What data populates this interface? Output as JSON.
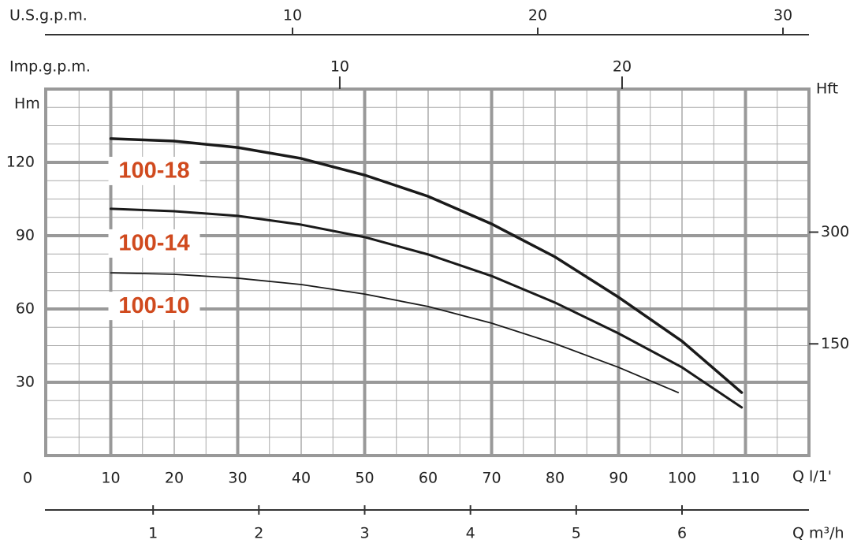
{
  "chart_data": {
    "type": "line",
    "x_label": "Q l/1'",
    "y_label": "Hm",
    "y2_label": "Hft",
    "xlim": [
      0,
      120
    ],
    "xticks": [
      0,
      10,
      20,
      30,
      40,
      50,
      60,
      70,
      80,
      90,
      100,
      110
    ],
    "ylim": [
      0,
      150
    ],
    "yticks": [
      30,
      60,
      90,
      120
    ],
    "y2lim": [
      0,
      492.1
    ],
    "y2ticks": [
      150,
      300
    ],
    "grid": true,
    "label_color": "#d04a1e",
    "top_axes": [
      {
        "label": "U.S.g.p.m.",
        "xlim": [
          0,
          31.06
        ],
        "xticks": [
          10,
          20,
          30
        ]
      },
      {
        "label": "Imp.g.p.m.",
        "xlim": [
          -0.36,
          26.62
        ],
        "xticks": [
          10,
          20
        ]
      }
    ],
    "bottom_axis": {
      "label": "Q m³/h",
      "xlim": [
        0,
        7.2
      ],
      "xticks": [
        1,
        2,
        3,
        4,
        5,
        6
      ]
    },
    "series": [
      {
        "name": "100-18",
        "color": "#1a1a1a",
        "x": [
          10,
          20,
          30,
          40,
          50,
          60,
          70,
          80,
          90,
          100,
          109.4
        ],
        "values": [
          129.7,
          128.7,
          126.1,
          121.6,
          114.8,
          106.1,
          94.8,
          81.3,
          64.8,
          46.8,
          25.8
        ]
      },
      {
        "name": "100-14",
        "color": "#1a1a1a",
        "x": [
          10,
          20,
          30,
          40,
          50,
          60,
          70,
          80,
          90,
          100,
          109.4
        ],
        "values": [
          101,
          100,
          98.1,
          94.5,
          89.4,
          82.3,
          73.5,
          62.6,
          50,
          36.1,
          19.7
        ]
      },
      {
        "name": "100-10",
        "color": "#1a1a1a",
        "x": [
          10,
          20,
          30,
          40,
          50,
          60,
          70,
          80,
          90,
          99.4
        ],
        "values": [
          74.8,
          74.2,
          72.6,
          70,
          66.1,
          61,
          54.2,
          45.8,
          36.1,
          25.8
        ]
      }
    ]
  }
}
